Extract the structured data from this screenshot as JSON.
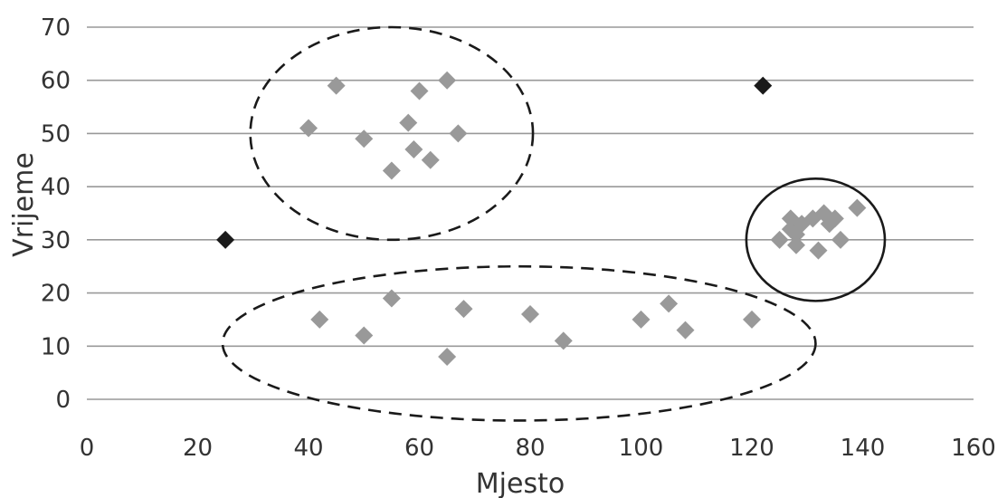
{
  "chart_data": {
    "type": "scatter",
    "title": "",
    "xlabel": "Mjesto",
    "ylabel": "Vrijeme",
    "xlim": [
      0,
      160
    ],
    "ylim": [
      0,
      70
    ],
    "xticks": [
      "0",
      "20",
      "40",
      "60",
      "80",
      "100",
      "120",
      "140",
      "160"
    ],
    "yticks": [
      "0",
      "10",
      "20",
      "30",
      "40",
      "50",
      "60",
      "70"
    ],
    "grid": "horizontal",
    "legend": "none",
    "marker": "diamond",
    "colors": {
      "cluster": "#999999",
      "outlier": "#1a1a1a",
      "grid": "#999999",
      "text": "#333333"
    },
    "series": [
      {
        "role": "cluster",
        "points": [
          [
            40,
            51
          ],
          [
            45,
            59
          ],
          [
            50,
            49
          ],
          [
            55,
            43
          ],
          [
            58,
            52
          ],
          [
            59,
            47
          ],
          [
            60,
            58
          ],
          [
            62,
            45
          ],
          [
            65,
            60
          ],
          [
            67,
            50
          ],
          [
            42,
            15
          ],
          [
            50,
            12
          ],
          [
            55,
            19
          ],
          [
            65,
            8
          ],
          [
            68,
            17
          ],
          [
            80,
            16
          ],
          [
            86,
            11
          ],
          [
            100,
            15
          ],
          [
            105,
            18
          ],
          [
            108,
            13
          ],
          [
            120,
            15
          ],
          [
            125,
            30
          ],
          [
            127,
            34
          ],
          [
            127,
            32
          ],
          [
            128,
            29
          ],
          [
            129,
            33
          ],
          [
            128,
            31
          ],
          [
            131,
            34
          ],
          [
            132,
            28
          ],
          [
            133,
            35
          ],
          [
            134,
            33
          ],
          [
            135,
            34
          ],
          [
            136,
            30
          ],
          [
            139,
            36
          ]
        ]
      },
      {
        "role": "outlier",
        "points": [
          [
            25,
            30
          ],
          [
            122,
            59
          ]
        ]
      }
    ],
    "annotations": [
      {
        "shape": "ellipse",
        "style": "dashed",
        "cx": 55,
        "cy": 50,
        "rx": 25.5,
        "ry": 20
      },
      {
        "shape": "ellipse",
        "style": "dashed",
        "cx": 78,
        "cy": 10.5,
        "rx": 53.5,
        "ry": 14.5
      },
      {
        "shape": "ellipse",
        "style": "solid",
        "cx": 131.5,
        "cy": 30,
        "rx": 12.5,
        "ry": 11.5
      }
    ]
  }
}
